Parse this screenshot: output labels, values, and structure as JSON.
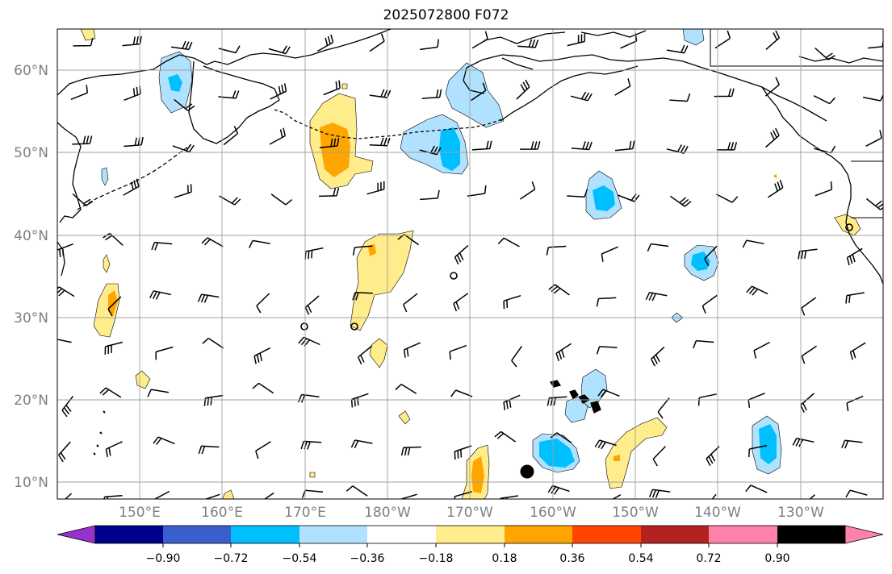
{
  "title": "2025072800 F072",
  "lat_labels": [
    "10°N",
    "20°N",
    "30°N",
    "40°N",
    "50°N",
    "60°N"
  ],
  "lon_labels": [
    "150°E",
    "160°E",
    "170°E",
    "180°W",
    "170°W",
    "160°W",
    "150°W",
    "140°W",
    "130°W"
  ],
  "colorbar": {
    "ticks": [
      "−0.90",
      "−0.72",
      "−0.54",
      "−0.36",
      "−0.18",
      "0.18",
      "0.36",
      "0.54",
      "0.72",
      "0.90"
    ],
    "colors": [
      "#9932cc",
      "#00008b",
      "#3a5fcd",
      "#00bfff",
      "#b0e2ff",
      "#ffffff",
      "#ffec8b",
      "#ffa500",
      "#ff4500",
      "#b22222",
      "#ff82ab"
    ]
  },
  "field_colors": {
    "light_blue": "#b0e2ff",
    "blue": "#00bfff",
    "light_yellow": "#ffec8b",
    "orange": "#ffa500"
  }
}
